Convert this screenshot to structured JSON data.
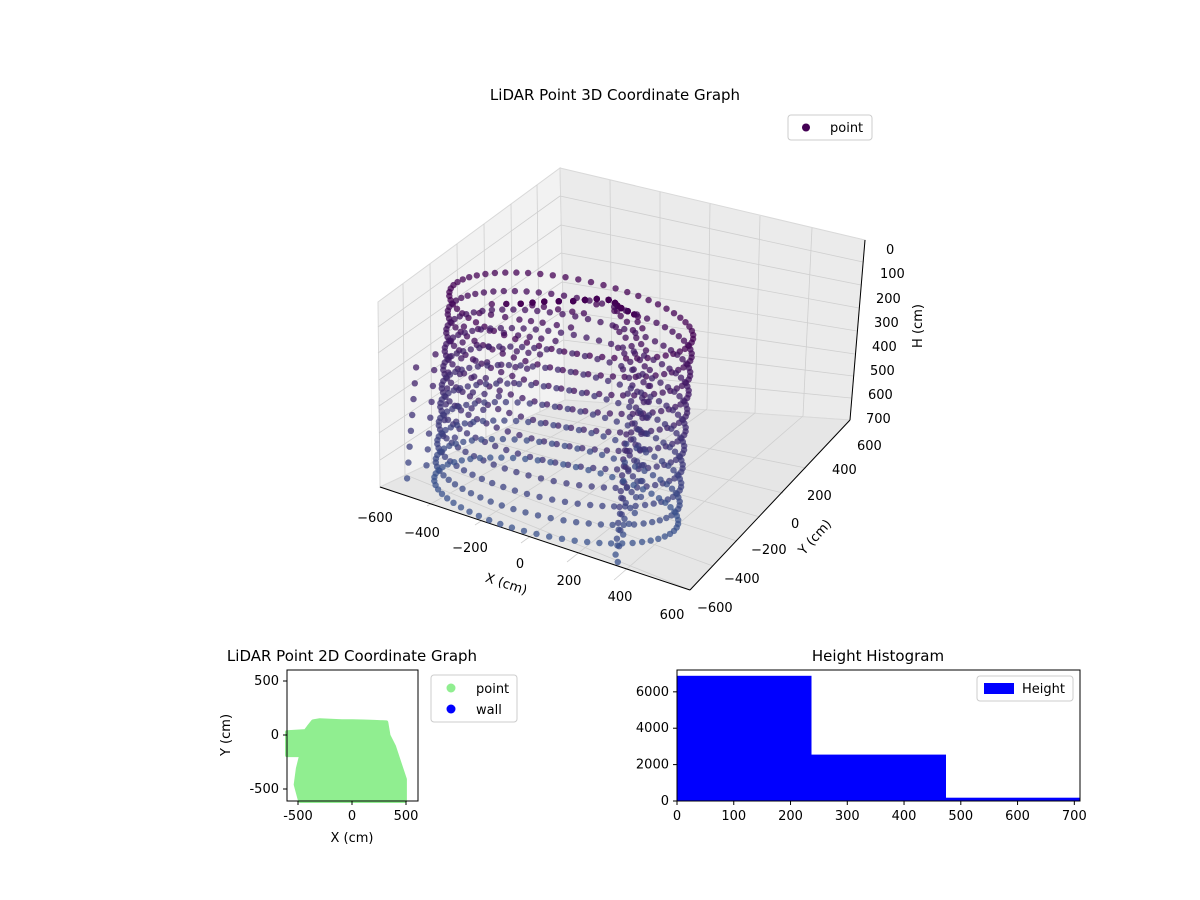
{
  "figure": {
    "background": "#ffffff"
  },
  "chart_data": [
    {
      "type": "scatter",
      "projection": "3d",
      "title": "LiDAR Point 3D Coordinate Graph",
      "xlabel": "X (cm)",
      "ylabel": "Y (cm)",
      "zlabel": "H (cm)",
      "xlim": [
        -600,
        600
      ],
      "ylim": [
        -600,
        600
      ],
      "zlim": [
        700,
        0
      ],
      "xticks": [
        "−600",
        "−400",
        "−200",
        "0",
        "200",
        "400",
        "600"
      ],
      "yticks": [
        "−600",
        "−400",
        "−200",
        "0",
        "200",
        "400",
        "600"
      ],
      "zticks": [
        "0",
        "100",
        "200",
        "300",
        "400",
        "500",
        "600",
        "700"
      ],
      "legend": {
        "placement": "top-right",
        "entries": [
          "point"
        ]
      },
      "grid": true,
      "colormap": "viridis (dark purple at top to slate blue at bottom)",
      "series": [
        {
          "name": "point",
          "legend_color": "#440154",
          "description_points": "dense ring of vertical point columns spanning x≈−600..300, y≈−600..600, h≈0..700",
          "x": [
            -520,
            -480,
            -450,
            -430,
            -400,
            -380,
            -350,
            -320,
            -300,
            -280,
            -250,
            -220,
            -200,
            -180,
            -150,
            -120,
            -100,
            -80,
            -50,
            -20,
            0,
            30,
            60,
            90,
            120,
            150,
            180,
            210,
            240,
            270,
            300
          ],
          "y": [
            -560,
            -500,
            -450,
            -400,
            -350,
            -300,
            -250,
            -200,
            -150,
            -100,
            -50,
            0,
            50,
            100,
            130,
            120,
            100,
            90,
            80,
            70,
            60,
            40,
            20,
            0,
            -50,
            -150,
            -250,
            -350,
            -450,
            -520,
            -560
          ],
          "h": [
            650,
            600,
            550,
            500,
            450,
            400,
            350,
            300,
            250,
            200,
            150,
            100,
            50,
            20,
            0,
            30,
            80,
            150,
            220,
            300,
            380,
            450,
            520,
            580,
            620,
            650,
            660,
            670,
            680,
            690,
            700
          ]
        }
      ]
    },
    {
      "type": "scatter",
      "title": "LiDAR Point 2D Coordinate Graph",
      "xlabel": "X (cm)",
      "ylabel": "Y (cm)",
      "xlim": [
        -600,
        600
      ],
      "ylim": [
        -600,
        600
      ],
      "xticks": [
        -500,
        0,
        500
      ],
      "yticks": [
        -500,
        0,
        500
      ],
      "legend": {
        "placement": "outside-right",
        "entries": [
          "point",
          "wall"
        ]
      },
      "series": [
        {
          "name": "point",
          "color": "#90ee90",
          "description_region": "filled blob: x from −600 to 480, y from −600 to 130",
          "outline": [
            [
              -600,
              30
            ],
            [
              -430,
              40
            ],
            [
              -400,
              80
            ],
            [
              -360,
              130
            ],
            [
              -300,
              140
            ],
            [
              -200,
              135
            ],
            [
              -100,
              130
            ],
            [
              0,
              130
            ],
            [
              100,
              128
            ],
            [
              200,
              125
            ],
            [
              310,
              120
            ],
            [
              320,
              60
            ],
            [
              330,
              0
            ],
            [
              380,
              -100
            ],
            [
              430,
              -250
            ],
            [
              480,
              -400
            ],
            [
              480,
              -600
            ],
            [
              -480,
              -600
            ],
            [
              -520,
              -450
            ],
            [
              -500,
              -300
            ],
            [
              -470,
              -180
            ],
            [
              -600,
              -180
            ]
          ]
        },
        {
          "name": "wall",
          "color": "#0000ff",
          "x": [],
          "y": []
        }
      ]
    },
    {
      "type": "bar",
      "subtype": "histogram",
      "title": "Height Histogram",
      "xlabel": "",
      "ylabel": "",
      "xlim": [
        0,
        710
      ],
      "ylim": [
        0,
        7200
      ],
      "xticks": [
        0,
        100,
        200,
        300,
        400,
        500,
        600,
        700
      ],
      "yticks": [
        0,
        2000,
        4000,
        6000
      ],
      "bin_edges": [
        0,
        237,
        474,
        711
      ],
      "values": [
        6880,
        2550,
        180
      ],
      "color": "#0000ff",
      "legend": {
        "placement": "top-right",
        "entries": [
          "Height"
        ]
      }
    }
  ]
}
